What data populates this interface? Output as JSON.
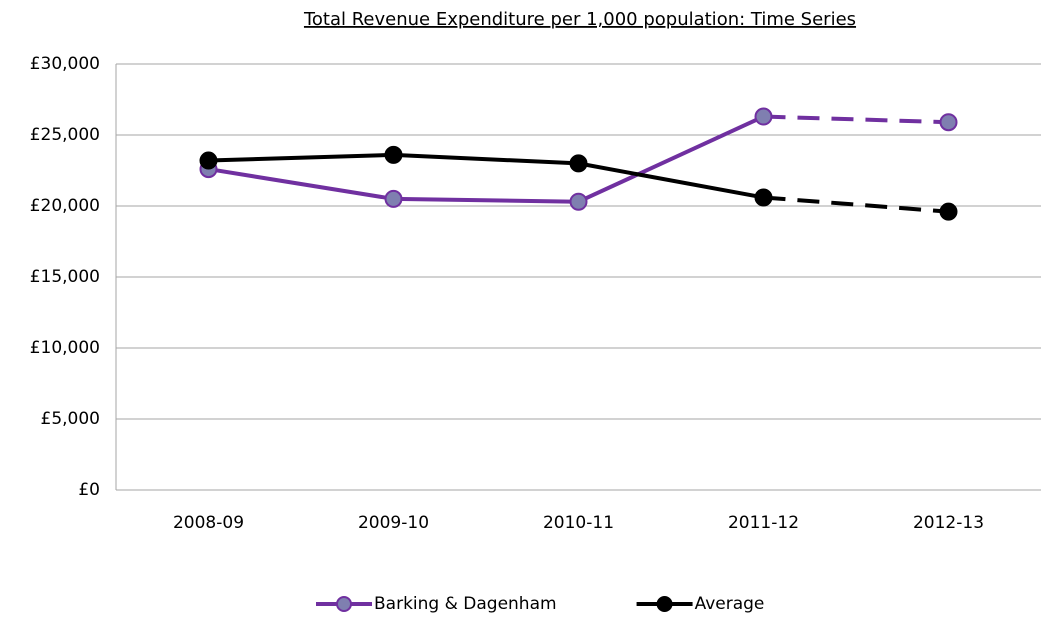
{
  "chart_data": {
    "type": "line",
    "title": "Total Revenue Expenditure per 1,000 population: Time Series",
    "categories": [
      "2008-09",
      "2009-10",
      "2010-11",
      "2011-12",
      "2012-13"
    ],
    "series": [
      {
        "name": "Barking & Dagenham",
        "color": "#7030a0",
        "marker_fill": "#7f7fb0",
        "values": [
          22600,
          20500,
          20300,
          26300,
          25900
        ],
        "dashed_segments": [
          3
        ]
      },
      {
        "name": "Average",
        "color": "#000000",
        "marker_fill": "#000000",
        "values": [
          23200,
          23600,
          23000,
          20600,
          19600
        ],
        "dashed_segments": [
          3
        ]
      }
    ],
    "ylim": [
      0,
      30000
    ],
    "yticks": [
      {
        "value": 0,
        "label": "£0"
      },
      {
        "value": 5000,
        "label": "£5,000"
      },
      {
        "value": 10000,
        "label": "£10,000"
      },
      {
        "value": 15000,
        "label": "£15,000"
      },
      {
        "value": 20000,
        "label": "£20,000"
      },
      {
        "value": 25000,
        "label": "£25,000"
      },
      {
        "value": 30000,
        "label": "£30,000"
      }
    ],
    "grid": true,
    "legend": "bottom"
  }
}
